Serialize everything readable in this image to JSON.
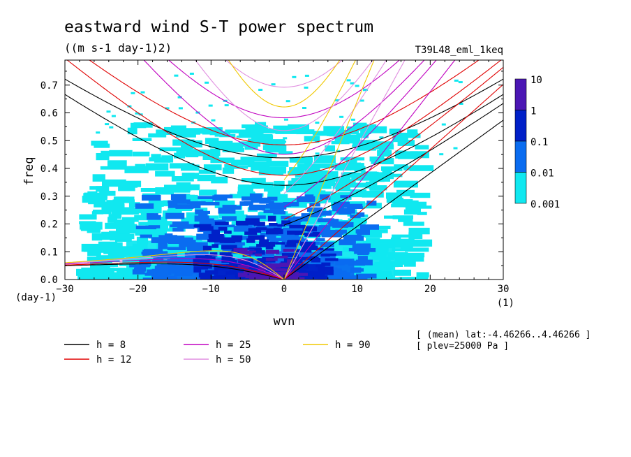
{
  "chart_data": {
    "type": "heatmap",
    "title": "eastward wind S-T power spectrum",
    "units": "((m s-1 day-1)2)",
    "run_label": "T39L48_eml_1keq",
    "xlabel": "wvn",
    "ylabel": "freq",
    "x_unit_label": "(1)",
    "y_unit_label": "(day-1)",
    "xlim": [
      -30,
      30
    ],
    "ylim": [
      0,
      0.79
    ],
    "xticks": [
      -30,
      -20,
      -10,
      0,
      10,
      20,
      30
    ],
    "xtick_labels": [
      "−30",
      "−20",
      "−10",
      "0",
      "10",
      "20",
      "30"
    ],
    "yticks": [
      0.0,
      0.1,
      0.2,
      0.3,
      0.4,
      0.5,
      0.6,
      0.7
    ],
    "ytick_labels": [
      "0.0",
      "0.1",
      "0.2",
      "0.3",
      "0.4",
      "0.5",
      "0.6",
      "0.7"
    ],
    "colorbar": {
      "levels": [
        "10",
        "1",
        "0.1",
        "0.01",
        "0.001"
      ],
      "colors": [
        "#4b16b4",
        "#0020c8",
        "#0a6cf0",
        "#10e8f0"
      ]
    },
    "power_regions": [
      {
        "level": "0.001",
        "color": "#10e8f0",
        "description": "broad band k -26..18, f up to ~0.5"
      },
      {
        "level": "0.01",
        "color": "#0a6cf0",
        "description": "k -20..12, f up to ~0.3"
      },
      {
        "level": "0.1",
        "color": "#0020c8",
        "description": "k -12..6, f up to ~0.18"
      },
      {
        "level": "1",
        "color": "#4b16b4",
        "description": "k -6..2, f up to ~0.1"
      }
    ],
    "dispersion_curves": [
      {
        "name": "h =  8",
        "equivalent_depth_m": 8,
        "color": "#000000"
      },
      {
        "name": "h = 12",
        "equivalent_depth_m": 12,
        "color": "#e00000"
      },
      {
        "name": "h = 25",
        "equivalent_depth_m": 25,
        "color": "#c000c0"
      },
      {
        "name": "h = 50",
        "equivalent_depth_m": 50,
        "color": "#e08ee0"
      },
      {
        "name": "h = 90",
        "equivalent_depth_m": 90,
        "color": "#f0c800"
      }
    ],
    "annotations": [
      "[ (mean) lat:-4.46266..4.46266 ]",
      "[ plev=25000 Pa ]"
    ]
  }
}
